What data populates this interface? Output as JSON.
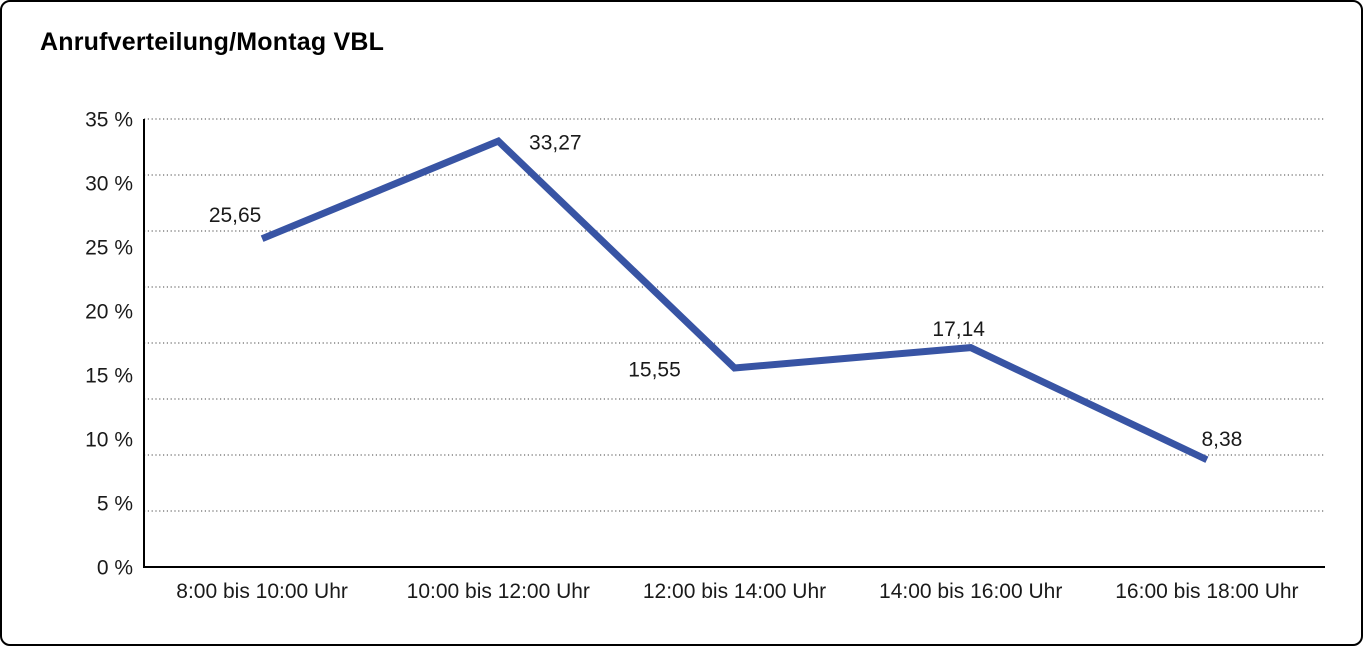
{
  "title": "Anrufverteilung/Montag VBL",
  "chart_data": {
    "type": "line",
    "title": "Anrufverteilung/Montag VBL",
    "categories": [
      "8:00 bis 10:00 Uhr",
      "10:00 bis 12:00 Uhr",
      "12:00 bis 14:00 Uhr",
      "14:00 bis 16:00 Uhr",
      "16:00 bis 18:00 Uhr"
    ],
    "values": [
      25.65,
      33.27,
      15.55,
      17.14,
      8.38
    ],
    "data_labels": [
      "25,65",
      "33,27",
      "15,55",
      "17,14",
      "8,38"
    ],
    "series": [
      {
        "name": "Anrufverteilung Montag VBL",
        "values": [
          25.65,
          33.27,
          15.55,
          17.14,
          8.38
        ]
      }
    ],
    "xlabel": "",
    "ylabel": "",
    "y_ticks": [
      "35 %",
      "30 %",
      "25 %",
      "20 %",
      "15 %",
      "10 %",
      "5 %",
      "0 %"
    ],
    "ylim": [
      0,
      35
    ],
    "grid": "horizontal-dotted",
    "grid_divisions": 8,
    "legend": "none",
    "line_color": "#3854A4",
    "axis_color": "#000000",
    "gridline_color": "#444444",
    "text_color": "#1a1a1a"
  }
}
